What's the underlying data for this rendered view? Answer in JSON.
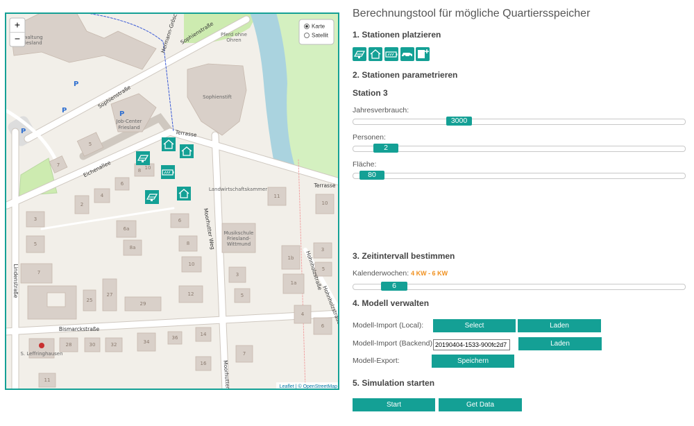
{
  "map": {
    "zoom_in": "+",
    "zoom_out": "−",
    "layers": [
      "Karte",
      "Satellit"
    ],
    "attribution": "Leaflet | © OpenStreetMap",
    "parking": "P",
    "labels": [
      "Verwaltung",
      "Friesland",
      "Sophienstraße",
      "Hermann-Gröschl",
      "Pferd ohne",
      "Ohren",
      "Sophienstraße",
      "Sophienstift",
      "Job-Center",
      "Friesland",
      "Terrasse",
      "Eichenallee",
      "Terrasse",
      "Landwirtschaftskammer",
      "Moorhutter Weg",
      "Musikschule",
      "Friesland-",
      "Wittmund",
      "Hohnholzstraße",
      "Hohnholzstraße",
      "Lindenstraße",
      "Bismarckstraße",
      "S. Leffringhausen",
      "Moorhutter"
    ],
    "house_numbers": [
      "7",
      "5",
      "8",
      "10",
      "4",
      "6",
      "2",
      "3",
      "5",
      "7",
      "6a",
      "8a",
      "6",
      "8",
      "10",
      "12",
      "25",
      "27",
      "29",
      "28",
      "30",
      "32",
      "34",
      "36",
      "14",
      "16",
      "11",
      "3",
      "5",
      "7",
      "1b",
      "1a",
      "3",
      "5",
      "4",
      "6",
      "11",
      "10"
    ]
  },
  "panel": {
    "title": "Berechnungstool für mögliche Quartiersspeicher",
    "placement": {
      "heading": "1. Stationen platzieren"
    },
    "parameters": {
      "heading": "2. Stationen parametrieren",
      "station": "Station 3",
      "sliders": [
        {
          "label": "Jahresverbrauch:",
          "value": 3000
        },
        {
          "label": "Personen:",
          "value": 2
        },
        {
          "label": "Fläche:",
          "value": 80
        }
      ]
    },
    "interval": {
      "heading": "3. Zeitintervall bestimmen",
      "label": "Kalenderwochen:",
      "range": "4 KW - 6 KW",
      "start": 4,
      "end": 6
    },
    "model": {
      "heading": "4. Modell verwalten",
      "import_local": "Modell-Import (Local):",
      "select": "Select",
      "load": "Laden",
      "import_backend": "Modell-Import (Backend):",
      "backend_id": "20190404-1533-900fc2d7",
      "load_backend": "Laden",
      "export": "Modell-Export:",
      "save": "Speichern"
    },
    "simulation": {
      "heading": "5. Simulation starten",
      "start": "Start",
      "get_data": "Get Data"
    }
  }
}
